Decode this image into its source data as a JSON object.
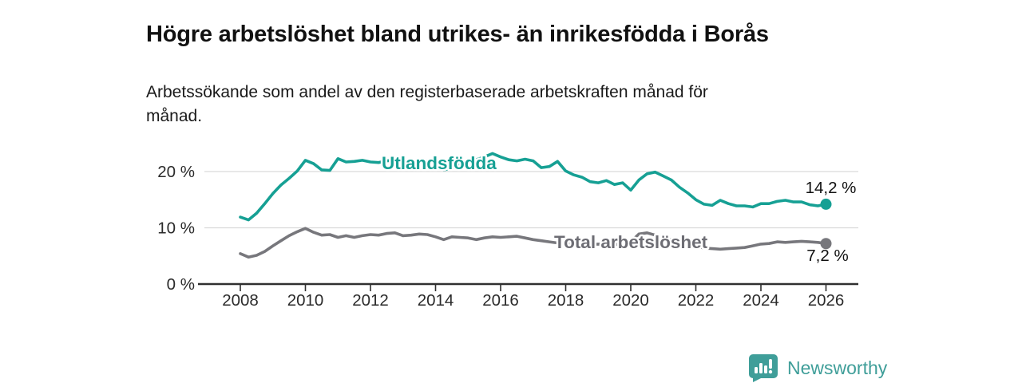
{
  "header": {
    "title": "Högre arbetslöshet bland utrikes- än inrikesfödda i Borås",
    "subtitle": "Arbetssökande som andel av den registerbaserade arbetskraften månad för månad."
  },
  "footer": {
    "brand": "Newsworthy",
    "logo_icon": "bar-chart-speech-bubble-icon"
  },
  "colors": {
    "accent_teal": "#16a094",
    "series_gray": "#77777c",
    "gray_label": "#6d6d74",
    "grid": "#d9d9d9",
    "axis": "#2f2f2f",
    "tick_text": "#2b2b2b",
    "value_text": "#111111",
    "brand_teal": "#3f9e99"
  },
  "chart_data": {
    "type": "line",
    "title": "Högre arbetslöshet bland utrikes- än inrikesfödda i Borås",
    "subtitle": "Arbetssökande som andel av den registerbaserade arbetskraften månad för månad.",
    "xlabel": "",
    "ylabel": "",
    "unit": "%",
    "grid": "horizontal-only",
    "legend_position": "inline-labels-on-lines",
    "x_start": 2008,
    "x_step": 0.25,
    "xlim": [
      2006.7,
      2027
    ],
    "ylim": [
      0,
      25
    ],
    "x_ticks": [
      2008,
      2010,
      2012,
      2014,
      2016,
      2018,
      2020,
      2022,
      2024,
      2026
    ],
    "y_ticks": [
      0,
      10,
      20
    ],
    "y_tick_suffix": " %",
    "series": [
      {
        "name": "Utlandsfödda",
        "color": "#16a094",
        "end_value": 14.2,
        "end_label": "14,2 %",
        "values": [
          11.9,
          11.4,
          12.6,
          14.3,
          16.1,
          17.6,
          18.8,
          20.1,
          22.0,
          21.4,
          20.3,
          20.2,
          22.3,
          21.7,
          21.8,
          22.0,
          21.7,
          21.6,
          21.9,
          22.0,
          21.7,
          22.0,
          21.6,
          21.9,
          21.4,
          20.3,
          20.6,
          21.2,
          21.6,
          22.1,
          22.6,
          23.2,
          22.6,
          22.1,
          21.9,
          22.2,
          21.9,
          20.7,
          20.9,
          21.8,
          20.1,
          19.4,
          19.0,
          18.2,
          18.0,
          18.4,
          17.7,
          18.0,
          16.7,
          18.5,
          19.6,
          19.9,
          19.2,
          18.5,
          17.2,
          16.2,
          15.0,
          14.2,
          14.0,
          14.9,
          14.3,
          13.9,
          13.9,
          13.7,
          14.3,
          14.3,
          14.7,
          14.9,
          14.6,
          14.6,
          14.1,
          13.9,
          14.2
        ]
      },
      {
        "name": "Total arbetslöshet",
        "color": "#77777c",
        "label_color": "#6d6d74",
        "end_value": 7.2,
        "end_label": "7,2 %",
        "values": [
          5.4,
          4.8,
          5.1,
          5.8,
          6.8,
          7.7,
          8.6,
          9.3,
          9.9,
          9.2,
          8.7,
          8.8,
          8.3,
          8.6,
          8.3,
          8.6,
          8.8,
          8.7,
          9.0,
          9.1,
          8.6,
          8.7,
          8.9,
          8.8,
          8.4,
          7.9,
          8.4,
          8.3,
          8.2,
          7.9,
          8.2,
          8.4,
          8.3,
          8.4,
          8.5,
          8.2,
          7.9,
          7.7,
          7.5,
          7.3,
          7.2,
          7.1,
          7.0,
          7.0,
          7.1,
          7.0,
          7.0,
          7.1,
          7.5,
          8.9,
          9.1,
          8.7,
          8.3,
          7.8,
          7.4,
          7.0,
          6.7,
          6.4,
          6.3,
          6.2,
          6.3,
          6.4,
          6.5,
          6.8,
          7.1,
          7.2,
          7.5,
          7.4,
          7.5,
          7.6,
          7.5,
          7.4,
          7.2
        ]
      }
    ]
  }
}
